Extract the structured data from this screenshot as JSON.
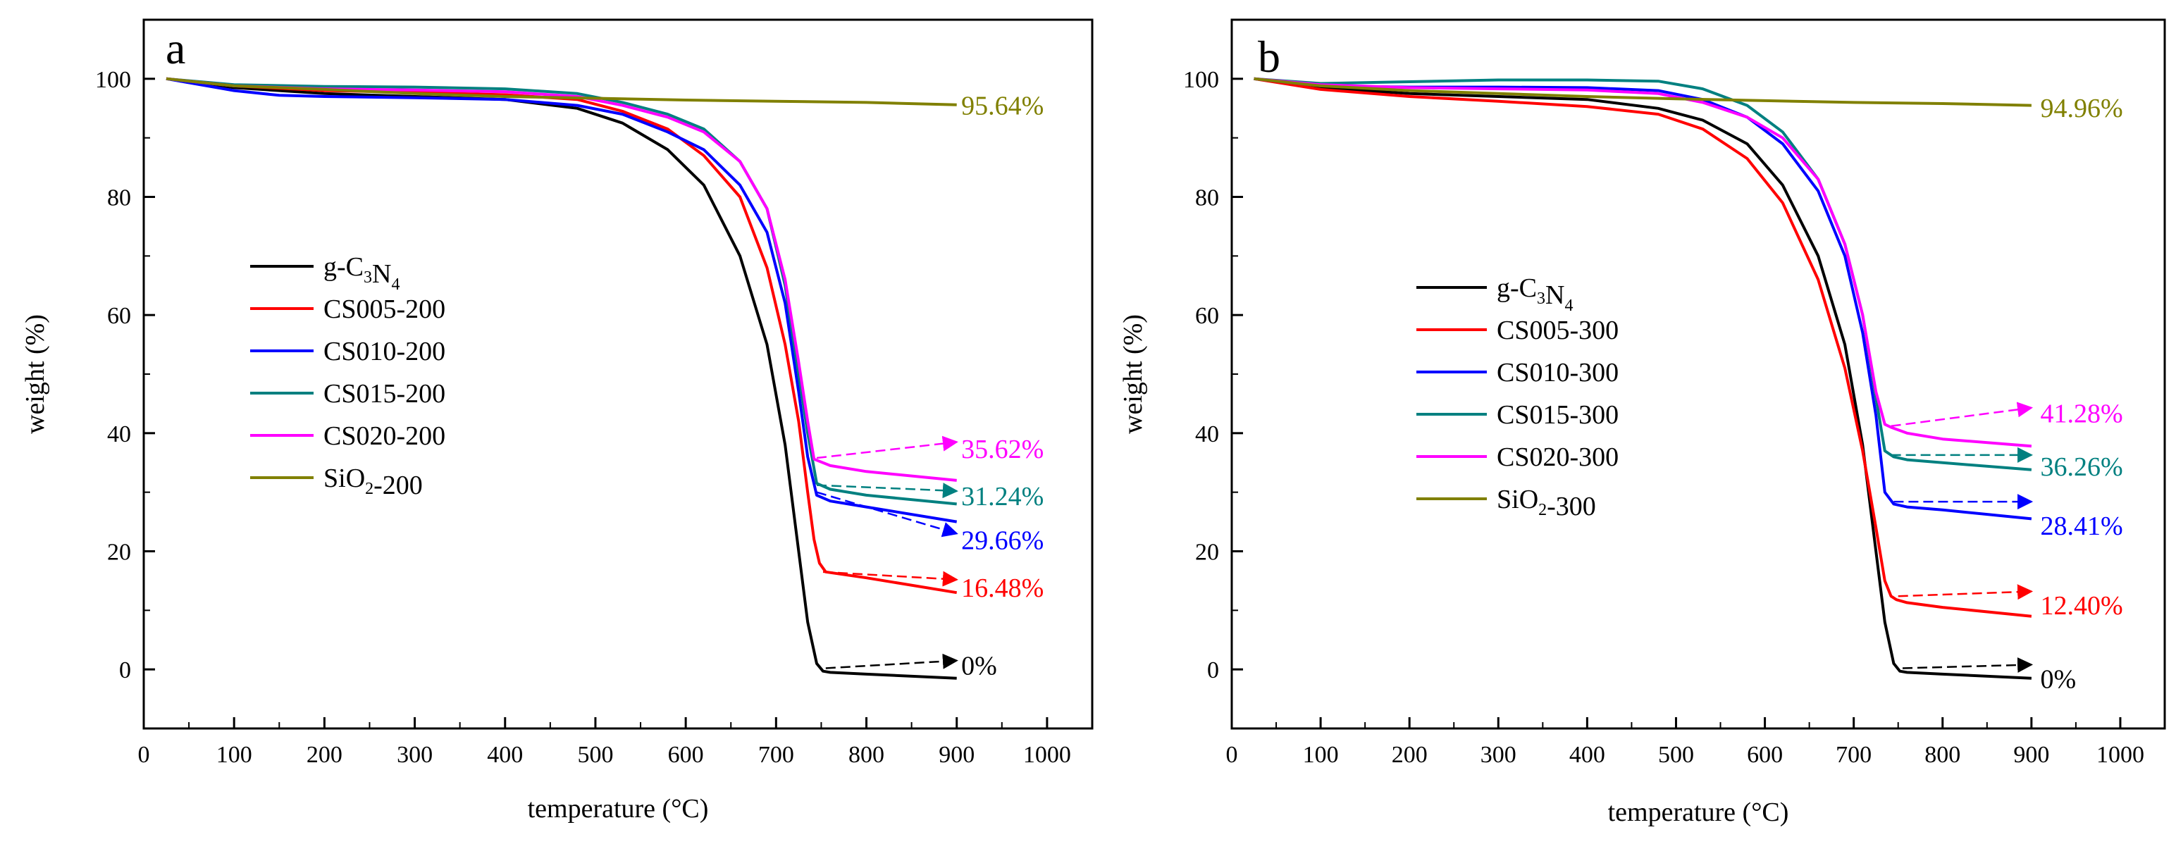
{
  "chart_data": [
    {
      "type": "line",
      "panel_label": "a",
      "xlabel": "temperature (°C)",
      "ylabel": "weight (%)",
      "xlim": [
        0,
        1050
      ],
      "ylim": [
        -10,
        110
      ],
      "x_ticks": [
        0,
        100,
        200,
        300,
        400,
        500,
        600,
        700,
        800,
        900,
        1000
      ],
      "y_ticks": [
        0,
        20,
        40,
        60,
        80,
        100
      ],
      "legend_position": "middle-left",
      "series": [
        {
          "name": "g-C3N4",
          "legend_main": "g-C",
          "legend_sub1": "3",
          "legend_mid": "N",
          "legend_sub2": "4",
          "legend_suffix": "",
          "color": "#000000",
          "x": [
            25,
            100,
            200,
            300,
            400,
            480,
            530,
            580,
            620,
            660,
            690,
            710,
            725,
            735,
            745,
            752,
            760,
            800,
            900
          ],
          "y": [
            100,
            98.5,
            97.5,
            97,
            96.5,
            95,
            92.5,
            88,
            82,
            70,
            55,
            38,
            20,
            8,
            1,
            -0.3,
            -0.5,
            -0.8,
            -1.5
          ]
        },
        {
          "name": "CS005-200",
          "legend_main": "CS005-200",
          "color": "#ff0000",
          "x": [
            25,
            100,
            200,
            300,
            400,
            480,
            530,
            580,
            620,
            660,
            690,
            710,
            725,
            735,
            742,
            748,
            755,
            800,
            900
          ],
          "y": [
            100,
            98.8,
            98,
            97.7,
            97.3,
            96.5,
            94.5,
            91.5,
            87,
            80,
            68,
            55,
            42,
            30,
            22,
            18,
            16.5,
            15.5,
            13
          ]
        },
        {
          "name": "CS010-200",
          "legend_main": "CS010-200",
          "color": "#0000ff",
          "x": [
            25,
            100,
            150,
            200,
            300,
            400,
            480,
            530,
            580,
            620,
            660,
            690,
            710,
            725,
            735,
            745,
            760,
            800,
            900
          ],
          "y": [
            100,
            98,
            97.2,
            97,
            96.8,
            96.5,
            95.5,
            94,
            91,
            88,
            82,
            74,
            62,
            47,
            36,
            29.5,
            28.5,
            27.5,
            25
          ]
        },
        {
          "name": "CS015-200",
          "legend_main": "CS015-200",
          "color": "#008080",
          "x": [
            25,
            100,
            200,
            300,
            400,
            480,
            530,
            580,
            620,
            660,
            690,
            710,
            725,
            735,
            745,
            760,
            800,
            900
          ],
          "y": [
            100,
            99,
            98.7,
            98.6,
            98.3,
            97.5,
            96,
            94,
            91.5,
            86,
            78,
            65,
            50,
            40,
            31.5,
            30.5,
            29.5,
            28
          ]
        },
        {
          "name": "CS020-200",
          "legend_main": "CS020-200",
          "color": "#ff00ff",
          "x": [
            25,
            100,
            200,
            300,
            400,
            480,
            530,
            580,
            620,
            660,
            690,
            710,
            725,
            735,
            742,
            760,
            800,
            900
          ],
          "y": [
            100,
            98.8,
            98.3,
            98.1,
            97.8,
            97,
            95.5,
            93.5,
            91,
            86,
            78,
            66,
            52,
            42,
            35.6,
            34.5,
            33.5,
            32
          ]
        },
        {
          "name": "SiO2-200",
          "legend_main": "SiO",
          "legend_sub1": "2",
          "legend_mid": "",
          "legend_sub2": "",
          "legend_suffix": "-200",
          "color": "#808000",
          "x": [
            25,
            100,
            200,
            300,
            400,
            500,
            600,
            700,
            800,
            900
          ],
          "y": [
            100,
            98.8,
            98.2,
            97.5,
            97,
            96.7,
            96.4,
            96.2,
            96,
            95.6
          ]
        }
      ],
      "annotations": [
        {
          "text": "95.64%",
          "x": 905,
          "y": 95.6,
          "color": "#808000",
          "arrow": false
        },
        {
          "text": "35.62%",
          "x": 905,
          "y": 37.5,
          "color": "#ff00ff",
          "arrow": true,
          "from": [
            745,
            35.8
          ],
          "to": [
            900,
            38.5
          ]
        },
        {
          "text": "31.24%",
          "x": 905,
          "y": 29.5,
          "color": "#008080",
          "arrow": true,
          "from": [
            745,
            31.2
          ],
          "to": [
            900,
            30.2
          ]
        },
        {
          "text": "29.66%",
          "x": 905,
          "y": 22,
          "color": "#0000ff",
          "arrow": true,
          "from": [
            745,
            30
          ],
          "to": [
            900,
            23
          ]
        },
        {
          "text": "16.48%",
          "x": 905,
          "y": 14,
          "color": "#ff0000",
          "arrow": true,
          "from": [
            752,
            16.5
          ],
          "to": [
            900,
            15.2
          ]
        },
        {
          "text": "0%",
          "x": 905,
          "y": 0.8,
          "color": "#000000",
          "arrow": true,
          "from": [
            755,
            0.2
          ],
          "to": [
            900,
            1.5
          ]
        }
      ]
    },
    {
      "type": "line",
      "panel_label": "b",
      "xlabel": "temperature (°C)",
      "ylabel": "weight (%)",
      "xlim": [
        0,
        1050
      ],
      "ylim": [
        -10,
        110
      ],
      "x_ticks": [
        0,
        100,
        200,
        300,
        400,
        500,
        600,
        700,
        800,
        900,
        1000
      ],
      "y_ticks": [
        0,
        20,
        40,
        60,
        80,
        100
      ],
      "legend_position": "middle-left",
      "series": [
        {
          "name": "g-C3N4",
          "legend_main": "g-C",
          "legend_sub1": "3",
          "legend_mid": "N",
          "legend_sub2": "4",
          "legend_suffix": "",
          "color": "#000000",
          "x": [
            25,
            100,
            200,
            300,
            400,
            480,
            530,
            580,
            620,
            660,
            690,
            710,
            725,
            735,
            745,
            752,
            760,
            800,
            900
          ],
          "y": [
            100,
            98.5,
            97.5,
            97,
            96.5,
            95,
            93,
            89,
            82,
            70,
            55,
            38,
            20,
            8,
            1,
            -0.3,
            -0.5,
            -0.8,
            -1.5
          ]
        },
        {
          "name": "CS005-300",
          "legend_main": "CS005-300",
          "color": "#ff0000",
          "x": [
            25,
            100,
            200,
            300,
            400,
            480,
            530,
            580,
            620,
            660,
            690,
            710,
            725,
            735,
            742,
            748,
            760,
            800,
            900
          ],
          "y": [
            100,
            98.2,
            97,
            96.2,
            95.3,
            94,
            91.5,
            86.5,
            79,
            66,
            51,
            37,
            24,
            15,
            12.4,
            11.8,
            11.3,
            10.5,
            9
          ]
        },
        {
          "name": "CS010-300",
          "legend_main": "CS010-300",
          "color": "#0000ff",
          "x": [
            25,
            100,
            200,
            300,
            400,
            480,
            530,
            580,
            620,
            660,
            690,
            710,
            725,
            735,
            745,
            760,
            800,
            900
          ],
          "y": [
            100,
            98.8,
            98.6,
            98.6,
            98.5,
            98,
            96.5,
            93.5,
            89,
            81,
            70,
            57,
            43,
            30,
            28,
            27.5,
            27,
            25.5
          ]
        },
        {
          "name": "CS015-300",
          "legend_main": "CS015-300",
          "color": "#008080",
          "x": [
            25,
            100,
            200,
            300,
            400,
            480,
            530,
            580,
            620,
            660,
            690,
            710,
            725,
            735,
            745,
            760,
            800,
            900
          ],
          "y": [
            100,
            99.2,
            99.5,
            99.8,
            99.8,
            99.6,
            98.3,
            95.5,
            91,
            83,
            72,
            60,
            46,
            37,
            36,
            35.5,
            35,
            33.8
          ]
        },
        {
          "name": "CS020-300",
          "legend_main": "CS020-300",
          "color": "#ff00ff",
          "x": [
            25,
            100,
            200,
            300,
            400,
            480,
            530,
            580,
            620,
            660,
            690,
            710,
            725,
            735,
            742,
            760,
            800,
            900
          ],
          "y": [
            100,
            99,
            98.5,
            98.3,
            98.1,
            97.5,
            96,
            93.5,
            90,
            83,
            72,
            60,
            47,
            41.5,
            41,
            40,
            39,
            37.8
          ]
        },
        {
          "name": "SiO2-300",
          "legend_main": "SiO",
          "legend_sub1": "2",
          "legend_mid": "",
          "legend_sub2": "",
          "legend_suffix": "-300",
          "color": "#808000",
          "x": [
            25,
            100,
            200,
            300,
            400,
            500,
            600,
            700,
            800,
            900
          ],
          "y": [
            100,
            98.8,
            98,
            97.5,
            97,
            96.6,
            96.3,
            96,
            95.8,
            95.5
          ]
        }
      ],
      "annotations": [
        {
          "text": "94.96%",
          "x": 910,
          "y": 95.2,
          "color": "#808000",
          "arrow": false
        },
        {
          "text": "41.28%",
          "x": 910,
          "y": 43.5,
          "color": "#ff00ff",
          "arrow": true,
          "from": [
            742,
            41.2
          ],
          "to": [
            900,
            44.3
          ]
        },
        {
          "text": "36.26%",
          "x": 910,
          "y": 34.5,
          "color": "#008080",
          "arrow": true,
          "from": [
            742,
            36.3
          ],
          "to": [
            900,
            36.3
          ]
        },
        {
          "text": "28.41%",
          "x": 910,
          "y": 24.5,
          "color": "#0000ff",
          "arrow": true,
          "from": [
            745,
            28.4
          ],
          "to": [
            900,
            28.4
          ]
        },
        {
          "text": "12.40%",
          "x": 910,
          "y": 11,
          "color": "#ff0000",
          "arrow": true,
          "from": [
            750,
            12.4
          ],
          "to": [
            900,
            13.2
          ]
        },
        {
          "text": "0%",
          "x": 910,
          "y": -1.5,
          "color": "#000000",
          "arrow": true,
          "from": [
            755,
            0.2
          ],
          "to": [
            900,
            0.8
          ]
        }
      ]
    }
  ]
}
